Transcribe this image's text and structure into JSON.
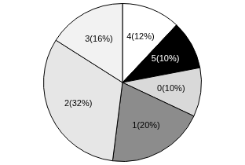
{
  "chart_data": {
    "type": "pie",
    "categories": [
      "4",
      "5",
      "0",
      "1",
      "2",
      "3"
    ],
    "values": [
      12,
      10,
      10,
      20,
      32,
      16
    ],
    "value_labels": [
      "4(12%)",
      "5(10%)",
      "0(10%)",
      "1(20%)",
      "2(32%)",
      "3(16%)"
    ],
    "colors": [
      "#ffffff",
      "#000000",
      "#d9d9d9",
      "#8c8c8c",
      "#e6e6e6",
      "#f2f2f2"
    ],
    "data_labels": true
  }
}
